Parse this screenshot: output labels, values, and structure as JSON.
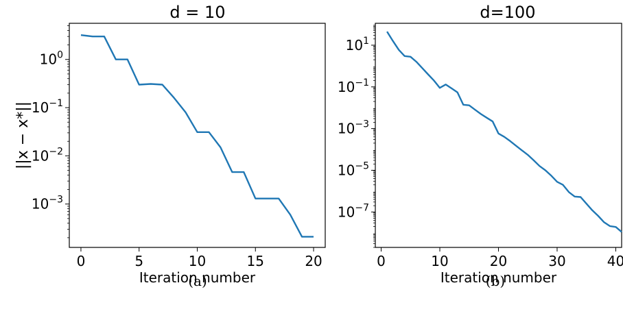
{
  "captions": [
    "(a)",
    "(b)"
  ],
  "chart_data": [
    {
      "type": "line",
      "title": "d = 10",
      "xlabel": "Iteration number",
      "ylabel": "||x − x*||",
      "yscale": "log",
      "xlim": [
        -1,
        21
      ],
      "ylim_exp": [
        -3.9,
        0.75
      ],
      "xticks": [
        0,
        5,
        10,
        15,
        20
      ],
      "yticks": [
        {
          "base": "10",
          "exp": "0",
          "value": 1
        },
        {
          "base": "10",
          "exp": "−1",
          "value": 0.1
        },
        {
          "base": "10",
          "exp": "−2",
          "value": 0.01
        },
        {
          "base": "10",
          "exp": "−3",
          "value": 0.001
        }
      ],
      "grid": false,
      "color": "#1f77b4",
      "series": [
        {
          "x": [
            0,
            1,
            2,
            3,
            4,
            5,
            6,
            7,
            8,
            9,
            10,
            11,
            12,
            13,
            14,
            15,
            16,
            17,
            18,
            19,
            20
          ],
          "y": [
            3.2,
            3.0,
            3.0,
            1.0,
            1.0,
            0.3,
            0.31,
            0.3,
            0.16,
            0.08,
            0.031,
            0.031,
            0.015,
            0.0046,
            0.0046,
            0.0013,
            0.0013,
            0.0013,
            0.0006,
            0.00021,
            0.00021
          ]
        }
      ]
    },
    {
      "type": "line",
      "title": "d=100",
      "xlabel": "Iteration number",
      "ylabel": "",
      "yscale": "log",
      "xlim": [
        -1,
        41
      ],
      "ylim_exp": [
        -8.7,
        2.05
      ],
      "xticks": [
        0,
        10,
        20,
        30,
        40
      ],
      "yticks": [
        {
          "base": "10",
          "exp": "1",
          "value": 10
        },
        {
          "base": "10",
          "exp": "−1",
          "value": 0.1
        },
        {
          "base": "10",
          "exp": "−3",
          "value": 0.001
        },
        {
          "base": "10",
          "exp": "−5",
          "value": 1e-05
        },
        {
          "base": "10",
          "exp": "−7",
          "value": 1e-07
        }
      ],
      "grid": false,
      "color": "#1f77b4",
      "series": [
        {
          "x": [
            1,
            2,
            3,
            4,
            5,
            6,
            7,
            8,
            9,
            10,
            11,
            12,
            13,
            14,
            15,
            16,
            17,
            18,
            19,
            20,
            21,
            22,
            23,
            24,
            25,
            26,
            27,
            28,
            29,
            30,
            31,
            32,
            33,
            34,
            35,
            36,
            37,
            38,
            39,
            40,
            41
          ],
          "y": [
            45,
            16,
            6,
            3,
            2.8,
            1.6,
            0.8,
            0.4,
            0.2,
            0.09,
            0.13,
            0.085,
            0.055,
            0.014,
            0.013,
            0.008,
            0.005,
            0.0033,
            0.0022,
            0.00058,
            0.0004,
            0.00025,
            0.00015,
            9e-05,
            5.5e-05,
            3e-05,
            1.6e-05,
            1e-05,
            5.5e-06,
            2.8e-06,
            2e-06,
            9e-07,
            5.5e-07,
            5.2e-07,
            2.5e-07,
            1.2e-07,
            6.5e-08,
            3.2e-08,
            2.1e-08,
            1.9e-08,
            1.1e-08
          ]
        }
      ]
    }
  ]
}
